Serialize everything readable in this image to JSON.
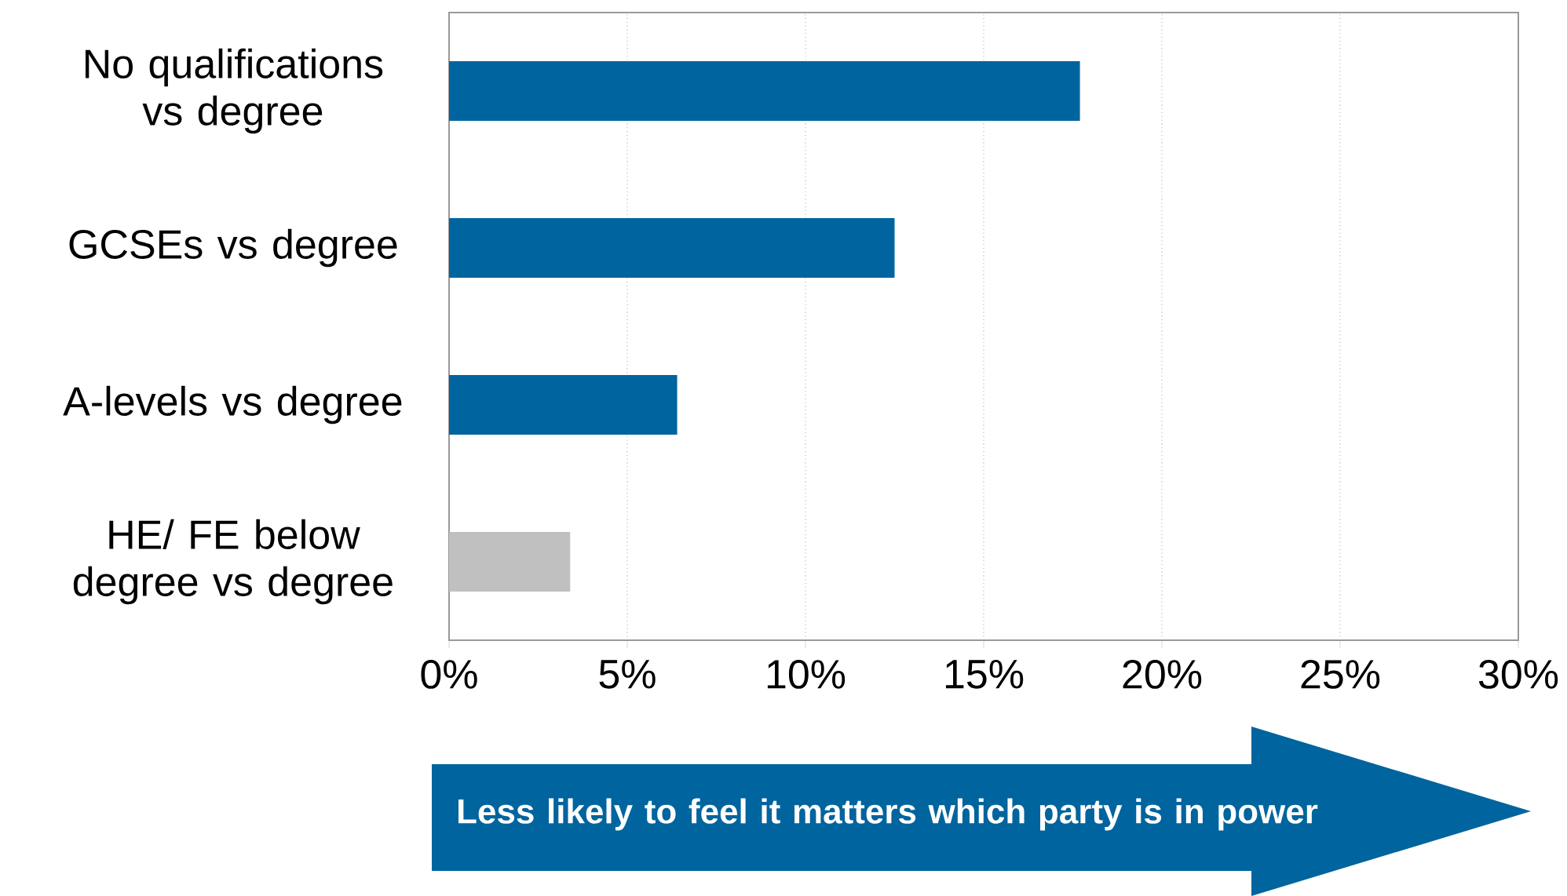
{
  "chart_data": {
    "type": "bar",
    "orientation": "horizontal",
    "categories": [
      "No qualifications vs degree",
      "GCSEs vs degree",
      "A-levels vs degree",
      "HE/ FE below degree vs degree"
    ],
    "values": [
      17.7,
      12.5,
      6.4,
      3.4
    ],
    "colors": [
      "#00649e",
      "#00649e",
      "#00649e",
      "#c0c0c0"
    ],
    "xlim": [
      0,
      30
    ],
    "xticks": [
      {
        "value": 0,
        "label": "0%"
      },
      {
        "value": 5,
        "label": "5%"
      },
      {
        "value": 10,
        "label": "10%"
      },
      {
        "value": 15,
        "label": "15%"
      },
      {
        "value": 20,
        "label": "20%"
      },
      {
        "value": 25,
        "label": "25%"
      },
      {
        "value": 30,
        "label": "30%"
      }
    ],
    "grid": "x",
    "annotations": [
      "Less likely to feel it matters which party is in power"
    ]
  }
}
